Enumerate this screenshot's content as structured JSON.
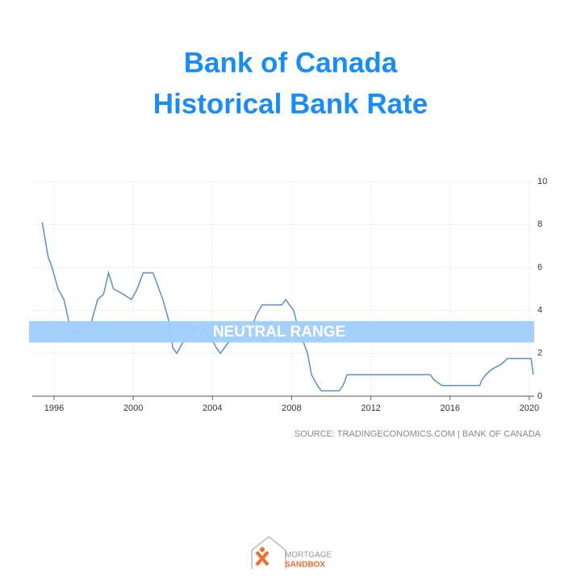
{
  "chart_data": {
    "type": "line",
    "title": [
      "Bank of Canada",
      "Historical Bank Rate"
    ],
    "x": [
      1995.4,
      1995.7,
      1995.9,
      1996.2,
      1996.5,
      1996.8,
      1997.0,
      1997.3,
      1997.6,
      1997.9,
      1998.2,
      1998.5,
      1998.75,
      1999.0,
      1999.5,
      1999.9,
      2000.2,
      2000.5,
      2001.0,
      2001.3,
      2001.5,
      2001.8,
      2002.0,
      2002.2,
      2002.5,
      2002.8,
      2003.3,
      2003.6,
      2003.9,
      2004.2,
      2004.4,
      2004.8,
      2005.4,
      2005.9,
      2006.2,
      2006.5,
      2007.5,
      2007.7,
      2008.1,
      2008.3,
      2008.8,
      2009.0,
      2009.3,
      2009.5,
      2010.4,
      2010.6,
      2010.8,
      2015.0,
      2015.2,
      2015.6,
      2017.5,
      2017.6,
      2017.8,
      2018.1,
      2018.6,
      2018.9,
      2020.1,
      2020.2
    ],
    "values": [
      8.1,
      6.5,
      6.0,
      5.0,
      4.5,
      3.25,
      3.0,
      3.0,
      3.25,
      3.5,
      4.5,
      4.75,
      5.75,
      5.0,
      4.75,
      4.5,
      5.0,
      5.75,
      5.75,
      5.0,
      4.5,
      3.5,
      2.25,
      2.0,
      2.5,
      2.75,
      3.25,
      3.0,
      2.75,
      2.25,
      2.0,
      2.5,
      2.75,
      3.0,
      3.75,
      4.25,
      4.25,
      4.5,
      4.0,
      3.25,
      2.0,
      1.0,
      0.5,
      0.25,
      0.25,
      0.5,
      1.0,
      1.0,
      0.75,
      0.5,
      0.5,
      0.75,
      1.0,
      1.25,
      1.5,
      1.75,
      1.75,
      1.0
    ],
    "color": "#5b8fc9",
    "xlim": [
      1994.9,
      2020.25
    ],
    "xticks": [
      1996,
      2000,
      2004,
      2008,
      2012,
      2016,
      2020
    ],
    "ylim": [
      0,
      10
    ],
    "yticks": [
      0,
      2,
      4,
      6,
      8,
      10
    ],
    "grid": true,
    "band": {
      "label": "NEUTRAL RANGE",
      "from": 2.5,
      "to": 3.5,
      "color": "#9fcefc"
    },
    "source": "SOURCE: TRADINGECONOMICS.COM | BANK OF CANADA",
    "logo": {
      "top": "MORTGAGE",
      "bottom": "SANDBOX"
    }
  }
}
